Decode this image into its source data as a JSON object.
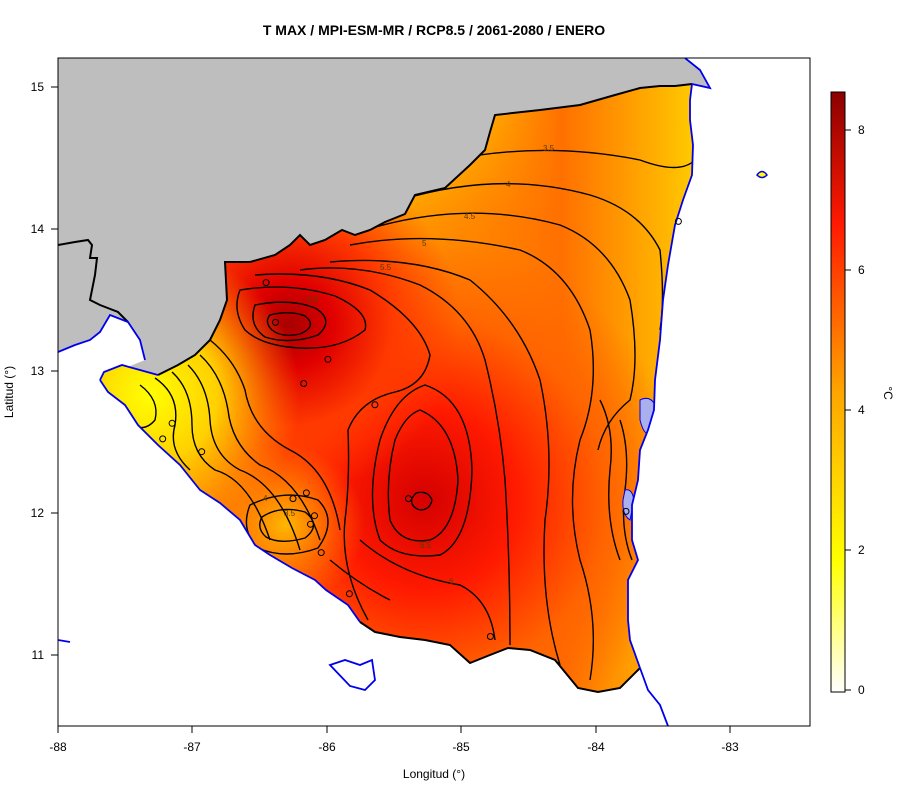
{
  "title": "T MAX / MPI-ESM-MR / RCP8.5 / 2061-2080 / ENERO",
  "xlabel": "Longitud (°)",
  "ylabel": "Latitud (°)",
  "x_ticks": [
    "-88",
    "-87",
    "-86",
    "-85",
    "-84",
    "-83"
  ],
  "y_ticks": [
    "15",
    "14",
    "13",
    "12",
    "11"
  ],
  "legend": {
    "unit": "°C",
    "ticks": [
      "8",
      "6",
      "4",
      "2",
      "0"
    ],
    "range": [
      0,
      8.6
    ]
  },
  "contour_labels": [
    "3.5",
    "4",
    "4.5",
    "5",
    "5.5",
    "6.5",
    "4",
    "3.5",
    "6.5",
    "6"
  ],
  "colors": {
    "land_mask": "#bebebe",
    "coastline": "#0000ee",
    "border": "#000000",
    "lake": "#aab0ee",
    "scale": [
      "#ffffff",
      "#ffff00",
      "#ffa500",
      "#ff0000",
      "#8b0000"
    ]
  },
  "chart_data": {
    "type": "heatmap",
    "title": "T MAX / MPI-ESM-MR / RCP8.5 / 2061-2080 / ENERO",
    "xlabel": "Longitud (°)",
    "ylabel": "Latitud (°)",
    "xlim": [
      -88,
      -82.4
    ],
    "ylim": [
      10.5,
      15.2
    ],
    "colorbar_range": [
      0,
      8.6
    ],
    "unit": "°C",
    "contour_levels": [
      2,
      2.5,
      3,
      3.5,
      4,
      4.5,
      5,
      5.5,
      6,
      6.5,
      7,
      7.5,
      8
    ],
    "stations": [
      {
        "lon": -86.45,
        "lat": 13.62
      },
      {
        "lon": -86.38,
        "lat": 13.34
      },
      {
        "lon": -85.99,
        "lat": 13.08
      },
      {
        "lon": -86.17,
        "lat": 12.91
      },
      {
        "lon": -85.64,
        "lat": 12.76
      },
      {
        "lon": -87.15,
        "lat": 12.63
      },
      {
        "lon": -87.22,
        "lat": 12.52
      },
      {
        "lon": -86.93,
        "lat": 12.43
      },
      {
        "lon": -86.15,
        "lat": 12.14
      },
      {
        "lon": -86.25,
        "lat": 12.1
      },
      {
        "lon": -85.39,
        "lat": 12.1
      },
      {
        "lon": -86.09,
        "lat": 11.98
      },
      {
        "lon": -86.12,
        "lat": 11.92
      },
      {
        "lon": -86.04,
        "lat": 11.72
      },
      {
        "lon": -85.83,
        "lat": 11.43
      },
      {
        "lon": -84.78,
        "lat": 11.13
      },
      {
        "lon": -83.77,
        "lat": 12.01
      },
      {
        "lon": -83.38,
        "lat": 14.05
      }
    ]
  }
}
